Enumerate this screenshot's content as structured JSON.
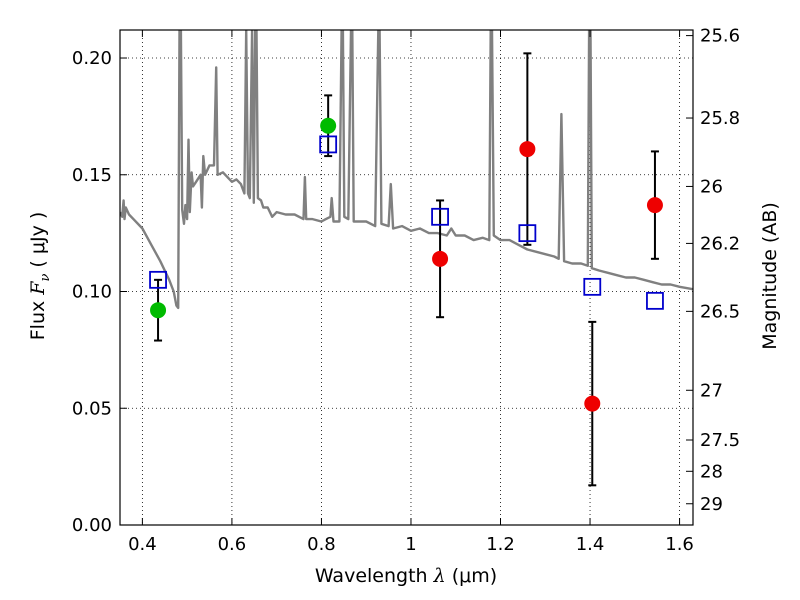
{
  "chart_data": {
    "type": "scatter",
    "xlabel": "Wavelength",
    "xlabel_symbol": "λ",
    "xlabel_unit": "(μm)",
    "ylabel_left": "Flux",
    "ylabel_left_symbol": "F",
    "ylabel_left_subscript": "ν",
    "ylabel_left_unit": "( μJy )",
    "ylabel_right": "Magnitude (AB)",
    "xlim": [
      0.35,
      1.63
    ],
    "ylim": [
      0.0,
      0.212
    ],
    "grid": true,
    "x_ticks": [
      0.4,
      0.6,
      0.8,
      1.0,
      1.2,
      1.4,
      1.6
    ],
    "x_tick_labels": [
      "0.4",
      "0.6",
      "0.8",
      "1",
      "1.2",
      "1.4",
      "1.6"
    ],
    "y_ticks": [
      0.0,
      0.05,
      0.1,
      0.15,
      0.2
    ],
    "y_tick_labels": [
      "0.00",
      "0.05",
      "0.10",
      "0.15",
      "0.20"
    ],
    "right_ticks": [
      {
        "label": "25.6",
        "flux": 0.2096
      },
      {
        "label": "25.8",
        "flux": 0.1743
      },
      {
        "label": "26",
        "flux": 0.145
      },
      {
        "label": "26.2",
        "flux": 0.1206
      },
      {
        "label": "26.5",
        "flux": 0.0915
      },
      {
        "label": "27",
        "flux": 0.0577
      },
      {
        "label": "27.5",
        "flux": 0.0364
      },
      {
        "label": "28",
        "flux": 0.023
      },
      {
        "label": "29",
        "flux": 0.0091
      }
    ],
    "model_spectrum": {
      "color": "#808080",
      "points": [
        [
          0.35,
          0.134
        ],
        [
          0.355,
          0.132
        ],
        [
          0.358,
          0.139
        ],
        [
          0.36,
          0.131
        ],
        [
          0.363,
          0.136
        ],
        [
          0.37,
          0.133
        ],
        [
          0.38,
          0.131
        ],
        [
          0.4,
          0.127
        ],
        [
          0.42,
          0.12
        ],
        [
          0.44,
          0.113
        ],
        [
          0.46,
          0.105
        ],
        [
          0.47,
          0.1
        ],
        [
          0.476,
          0.094
        ],
        [
          0.48,
          0.093
        ],
        [
          0.483,
          0.212
        ],
        [
          0.486,
          0.212
        ],
        [
          0.489,
          0.135
        ],
        [
          0.493,
          0.129
        ],
        [
          0.496,
          0.137
        ],
        [
          0.5,
          0.131
        ],
        [
          0.503,
          0.165
        ],
        [
          0.506,
          0.134
        ],
        [
          0.51,
          0.151
        ],
        [
          0.513,
          0.145
        ],
        [
          0.52,
          0.147
        ],
        [
          0.53,
          0.15
        ],
        [
          0.533,
          0.136
        ],
        [
          0.536,
          0.158
        ],
        [
          0.54,
          0.15
        ],
        [
          0.55,
          0.154
        ],
        [
          0.56,
          0.154
        ],
        [
          0.565,
          0.196
        ],
        [
          0.568,
          0.15
        ],
        [
          0.58,
          0.151
        ],
        [
          0.59,
          0.149
        ],
        [
          0.6,
          0.147
        ],
        [
          0.61,
          0.148
        ],
        [
          0.62,
          0.146
        ],
        [
          0.628,
          0.142
        ],
        [
          0.632,
          0.212
        ],
        [
          0.636,
          0.142
        ],
        [
          0.64,
          0.14
        ],
        [
          0.645,
          0.212
        ],
        [
          0.649,
          0.138
        ],
        [
          0.652,
          0.212
        ],
        [
          0.655,
          0.212
        ],
        [
          0.658,
          0.14
        ],
        [
          0.665,
          0.139
        ],
        [
          0.67,
          0.136
        ],
        [
          0.68,
          0.136
        ],
        [
          0.69,
          0.132
        ],
        [
          0.7,
          0.134
        ],
        [
          0.72,
          0.133
        ],
        [
          0.74,
          0.133
        ],
        [
          0.76,
          0.131
        ],
        [
          0.763,
          0.149
        ],
        [
          0.766,
          0.131
        ],
        [
          0.78,
          0.131
        ],
        [
          0.8,
          0.13
        ],
        [
          0.81,
          0.131
        ],
        [
          0.82,
          0.132
        ],
        [
          0.823,
          0.14
        ],
        [
          0.827,
          0.13
        ],
        [
          0.84,
          0.13
        ],
        [
          0.845,
          0.212
        ],
        [
          0.848,
          0.212
        ],
        [
          0.851,
          0.132
        ],
        [
          0.86,
          0.131
        ],
        [
          0.866,
          0.212
        ],
        [
          0.869,
          0.212
        ],
        [
          0.872,
          0.13
        ],
        [
          0.88,
          0.13
        ],
        [
          0.9,
          0.13
        ],
        [
          0.92,
          0.128
        ],
        [
          0.927,
          0.212
        ],
        [
          0.93,
          0.212
        ],
        [
          0.934,
          0.129
        ],
        [
          0.95,
          0.128
        ],
        [
          0.955,
          0.146
        ],
        [
          0.96,
          0.127
        ],
        [
          0.98,
          0.128
        ],
        [
          1.0,
          0.126
        ],
        [
          1.02,
          0.127
        ],
        [
          1.04,
          0.125
        ],
        [
          1.06,
          0.125
        ],
        [
          1.08,
          0.124
        ],
        [
          1.09,
          0.127
        ],
        [
          1.1,
          0.124
        ],
        [
          1.12,
          0.124
        ],
        [
          1.14,
          0.122
        ],
        [
          1.16,
          0.123
        ],
        [
          1.175,
          0.122
        ],
        [
          1.178,
          0.212
        ],
        [
          1.181,
          0.212
        ],
        [
          1.185,
          0.124
        ],
        [
          1.2,
          0.122
        ],
        [
          1.22,
          0.122
        ],
        [
          1.24,
          0.12
        ],
        [
          1.26,
          0.118
        ],
        [
          1.28,
          0.117
        ],
        [
          1.3,
          0.116
        ],
        [
          1.32,
          0.115
        ],
        [
          1.33,
          0.114
        ],
        [
          1.336,
          0.176
        ],
        [
          1.342,
          0.113
        ],
        [
          1.36,
          0.112
        ],
        [
          1.38,
          0.112
        ],
        [
          1.395,
          0.111
        ],
        [
          1.398,
          0.212
        ],
        [
          1.401,
          0.212
        ],
        [
          1.404,
          0.11
        ],
        [
          1.42,
          0.109
        ],
        [
          1.44,
          0.108
        ],
        [
          1.46,
          0.107
        ],
        [
          1.48,
          0.106
        ],
        [
          1.5,
          0.106
        ],
        [
          1.52,
          0.105
        ],
        [
          1.54,
          0.104
        ],
        [
          1.56,
          0.103
        ],
        [
          1.58,
          0.103
        ],
        [
          1.6,
          0.102
        ],
        [
          1.63,
          0.101
        ]
      ]
    },
    "model_photometry": {
      "marker": "open-square",
      "color": "#0000cc",
      "points": [
        [
          0.435,
          0.105
        ],
        [
          0.815,
          0.163
        ],
        [
          1.065,
          0.132
        ],
        [
          1.26,
          0.125
        ],
        [
          1.405,
          0.102
        ],
        [
          1.545,
          0.096
        ]
      ]
    },
    "detections": {
      "marker": "filled-circle",
      "color": "#00bb00",
      "points": [
        {
          "x": 0.435,
          "y": 0.092,
          "err": 0.013
        },
        {
          "x": 0.815,
          "y": 0.171,
          "err": 0.013
        }
      ]
    },
    "measurements": {
      "marker": "filled-circle",
      "color": "#ee0000",
      "points": [
        {
          "x": 1.065,
          "y": 0.114,
          "err": 0.025
        },
        {
          "x": 1.26,
          "y": 0.161,
          "err": 0.041
        },
        {
          "x": 1.405,
          "y": 0.052,
          "err": 0.035
        },
        {
          "x": 1.545,
          "y": 0.137,
          "err": 0.023
        }
      ]
    }
  }
}
